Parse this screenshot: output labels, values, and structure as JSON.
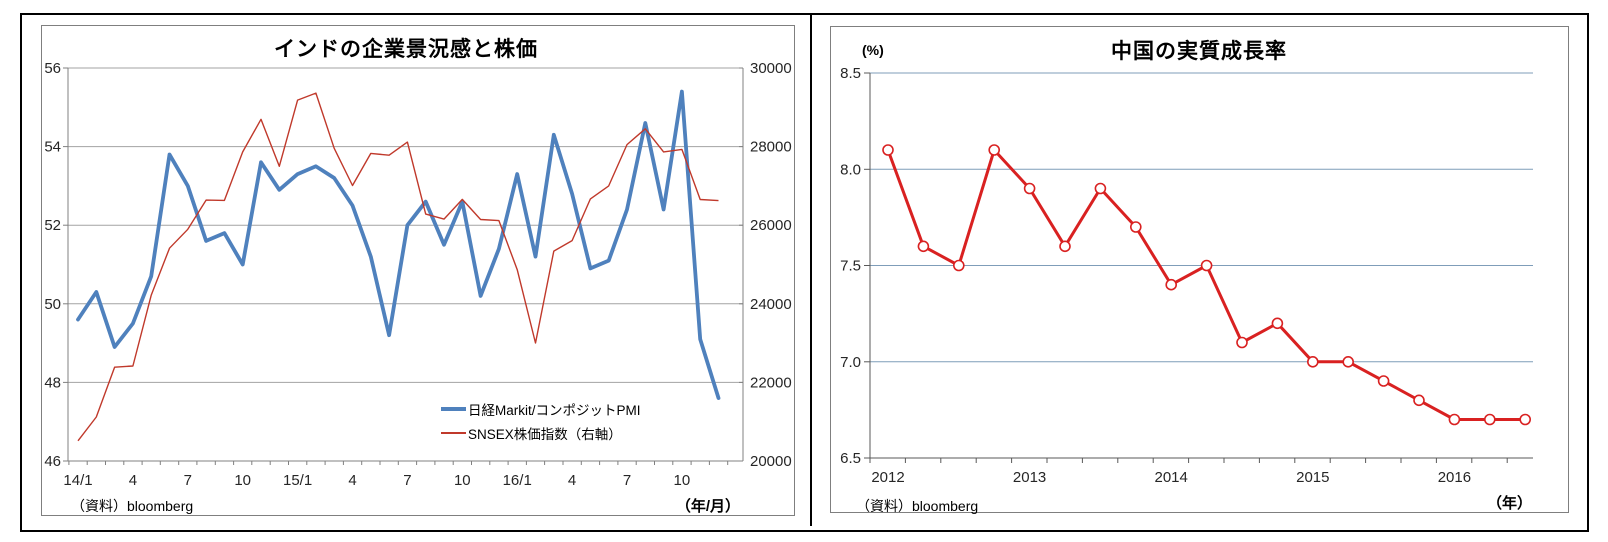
{
  "colors": {
    "pmi_blue": "#4F81BD",
    "sensex_red": "#C0392B",
    "gdp_red": "#D92121",
    "grid_gray": "#a3a3a3",
    "axis_gray": "#808080",
    "grid_blue": "#7F9DB9",
    "axis_dark": "#595959",
    "tick_text": "#262626"
  },
  "chart_data": [
    {
      "type": "line",
      "title": "インドの企業景況感と株価",
      "source": "（資料）bloomberg",
      "x_unit": "（年/月）",
      "x": [
        "14/1",
        "14/2",
        "14/3",
        "14/4",
        "14/5",
        "14/6",
        "14/7",
        "14/8",
        "14/9",
        "14/10",
        "14/11",
        "14/12",
        "15/1",
        "15/2",
        "15/3",
        "15/4",
        "15/5",
        "15/6",
        "15/7",
        "15/8",
        "15/9",
        "15/10",
        "15/11",
        "15/12",
        "16/1",
        "16/2",
        "16/3",
        "16/4",
        "16/5",
        "16/6",
        "16/7",
        "16/8",
        "16/9",
        "16/10",
        "16/11",
        "16/12"
      ],
      "x_tick_labels": [
        "14/1",
        "4",
        "7",
        "10",
        "15/1",
        "4",
        "7",
        "10",
        "16/1",
        "4",
        "7",
        "10"
      ],
      "ylim_left": [
        46,
        56
      ],
      "y_left_ticks": [
        46,
        48,
        50,
        52,
        54,
        56
      ],
      "ylim_right": [
        20000,
        30000
      ],
      "y_right_ticks": [
        20000,
        22000,
        24000,
        26000,
        28000,
        30000
      ],
      "grid": true,
      "legend_position": "inside-lower-right",
      "series": [
        {
          "name": "日経Markit/コンポジットPMI",
          "axis": "left",
          "values": [
            49.6,
            50.3,
            48.9,
            49.5,
            50.7,
            53.8,
            53.0,
            51.6,
            51.8,
            51.0,
            53.6,
            52.9,
            53.3,
            53.5,
            53.2,
            52.5,
            51.2,
            49.2,
            52.0,
            52.6,
            51.5,
            52.6,
            50.2,
            51.4,
            53.3,
            51.2,
            54.3,
            52.8,
            50.9,
            51.1,
            52.4,
            54.6,
            52.4,
            55.4,
            49.1,
            47.6
          ]
        },
        {
          "name": "SNSEX株価指数（右軸）",
          "axis": "right",
          "values": [
            20514,
            21120,
            22386,
            22418,
            24217,
            25414,
            25895,
            26638,
            26631,
            27866,
            28694,
            27499,
            29183,
            29362,
            27957,
            27011,
            27828,
            27781,
            28115,
            26283,
            26155,
            26657,
            26146,
            26118,
            24871,
            23002,
            25342,
            25607,
            26668,
            26999,
            28052,
            28452,
            27866,
            27930,
            26653,
            26626
          ]
        }
      ]
    },
    {
      "type": "line",
      "title": "中国の実質成長率",
      "y_unit": "(%)",
      "source": "（資料）bloomberg",
      "x_unit": "（年）",
      "x": [
        "2012Q1",
        "2012Q2",
        "2012Q3",
        "2012Q4",
        "2013Q1",
        "2013Q2",
        "2013Q3",
        "2013Q4",
        "2014Q1",
        "2014Q2",
        "2014Q3",
        "2014Q4",
        "2015Q1",
        "2015Q2",
        "2015Q3",
        "2015Q4",
        "2016Q1",
        "2016Q2",
        "2016Q3"
      ],
      "x_tick_labels": [
        "2012",
        "2013",
        "2014",
        "2015",
        "2016"
      ],
      "values": [
        8.1,
        7.6,
        7.5,
        8.1,
        7.9,
        7.6,
        7.9,
        7.7,
        7.4,
        7.5,
        7.1,
        7.2,
        7.0,
        7.0,
        6.9,
        6.8,
        6.7,
        6.7,
        6.7
      ],
      "ylim": [
        6.5,
        8.5
      ],
      "yticks": [
        6.5,
        7.0,
        7.5,
        8.0,
        8.5
      ],
      "grid": true,
      "marker": "open-circle"
    }
  ]
}
